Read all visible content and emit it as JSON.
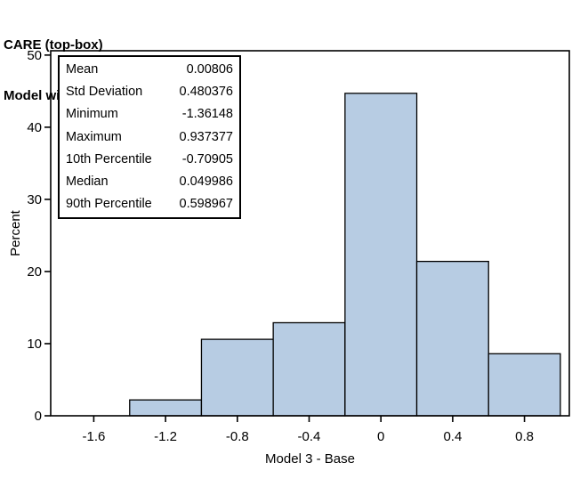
{
  "title": {
    "line1": "CARE (top-box)",
    "line2": "Model with MHP"
  },
  "colors": {
    "background": "#ffffff",
    "bar_fill": "#b7cce3",
    "bar_stroke": "#000000",
    "frame_stroke": "#000000",
    "text": "#000000"
  },
  "chart_data": {
    "type": "bar",
    "subtype": "histogram",
    "title": "CARE (top-box) Model with MHP",
    "xlabel": "Model 3 - Base",
    "ylabel": "Percent",
    "bin_width": 0.4,
    "bin_centers": [
      -1.2,
      -0.8,
      -0.4,
      0,
      0.4,
      0.8
    ],
    "values": [
      2.2,
      10.6,
      12.9,
      44.7,
      21.4,
      8.6
    ],
    "x_ticks": [
      -1.6,
      -1.2,
      -0.8,
      -0.4,
      0,
      0.4,
      0.8
    ],
    "x_tick_labels": [
      "-1.6",
      "-1.2",
      "-0.8",
      "-0.4",
      "0",
      "0.4",
      "0.8"
    ],
    "y_ticks": [
      0,
      10,
      20,
      30,
      40,
      50
    ],
    "y_tick_labels": [
      "0",
      "10",
      "20",
      "30",
      "40",
      "50"
    ],
    "xlim": [
      -1.84,
      1.05
    ],
    "ylim": [
      0,
      50.6
    ],
    "grid": false,
    "legend": null,
    "inset_stats": {
      "rows": [
        {
          "label": "Mean",
          "value": "0.00806"
        },
        {
          "label": "Std Deviation",
          "value": "0.480376"
        },
        {
          "label": "Minimum",
          "value": "-1.36148"
        },
        {
          "label": "Maximum",
          "value": "0.937377"
        },
        {
          "label": "10th Percentile",
          "value": "-0.70905"
        },
        {
          "label": "Median",
          "value": "0.049986"
        },
        {
          "label": "90th Percentile",
          "value": "0.598967"
        }
      ]
    }
  }
}
